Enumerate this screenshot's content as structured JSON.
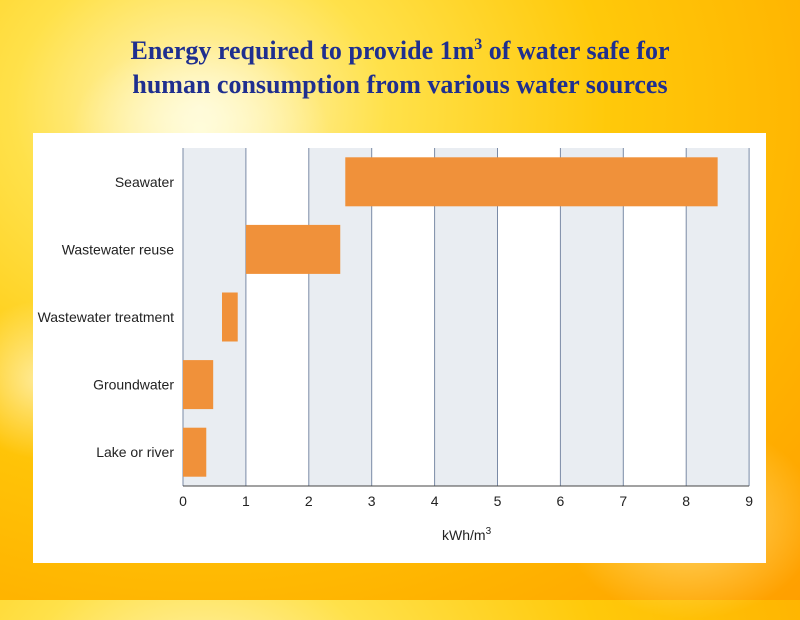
{
  "title": {
    "line1_before_sup": "Energy required to provide 1m",
    "line1_sup": "3",
    "line1_after_sup": " of water safe for",
    "line2": "human consumption from various water sources"
  },
  "chart_data": {
    "type": "bar",
    "orientation": "horizontal",
    "categories": [
      "Seawater",
      "Wastewater reuse",
      "Wastewater treatment",
      "Groundwater",
      "Lake or river"
    ],
    "ranges": [
      [
        2.58,
        8.5
      ],
      [
        1.0,
        2.5
      ],
      [
        0.62,
        0.87
      ],
      [
        0.0,
        0.48
      ],
      [
        0.0,
        0.37
      ]
    ],
    "xlabel_base": "kWh/m",
    "xlabel_sup": "3",
    "xlim": [
      0,
      9
    ],
    "xticks": [
      "0",
      "1",
      "2",
      "3",
      "4",
      "5",
      "6",
      "7",
      "8",
      "9"
    ],
    "grid": true,
    "bar_color": "#f0913a",
    "band_color": "#e9edf2"
  }
}
